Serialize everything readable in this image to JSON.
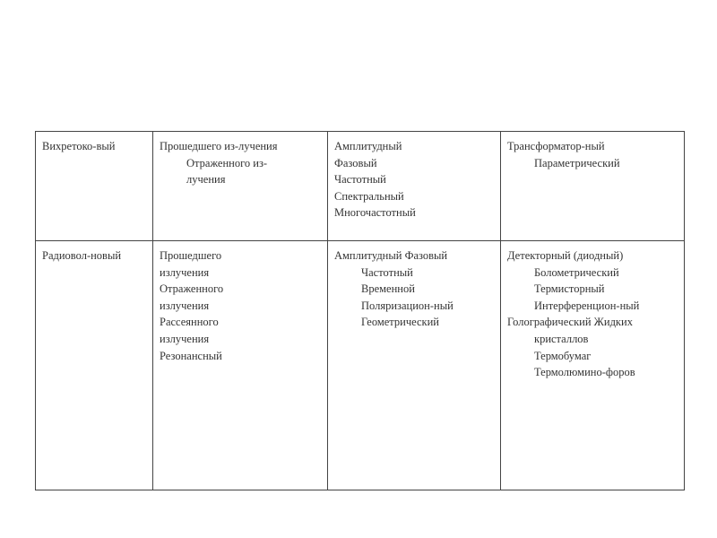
{
  "table": {
    "rows": [
      {
        "cells": [
          {
            "lines": [
              {
                "text": "Вихретоко-вый",
                "indent": false
              }
            ]
          },
          {
            "lines": [
              {
                "text": "Прошедшего из-лучения",
                "indent": false
              },
              {
                "text": "Отраженного из-",
                "indent": true
              },
              {
                "text": "лучения",
                "indent": true
              }
            ]
          },
          {
            "lines": [
              {
                "text": "Амплитудный",
                "indent": false
              },
              {
                "text": "Фазовый",
                "indent": false
              },
              {
                "text": "Частотный",
                "indent": false
              },
              {
                "text": "Спектральный",
                "indent": false
              },
              {
                "text": "Многочастотный",
                "indent": false
              }
            ]
          },
          {
            "lines": [
              {
                "text": "Трансформатор-ный",
                "indent": false
              },
              {
                "text": "Параметрический",
                "indent": true
              }
            ]
          }
        ]
      },
      {
        "cells": [
          {
            "lines": [
              {
                "text": "Радиовол-новый",
                "indent": false
              }
            ]
          },
          {
            "lines": [
              {
                "text": "Прошедшего",
                "indent": false
              },
              {
                "text": "излучения",
                "indent": false
              },
              {
                "text": "Отраженного",
                "indent": false
              },
              {
                "text": "излучения",
                "indent": false
              },
              {
                "text": "Рассеянного",
                "indent": false
              },
              {
                "text": "излучения",
                "indent": false
              },
              {
                "text": "Резонансный",
                "indent": false
              }
            ]
          },
          {
            "lines": [
              {
                "text": "Амплитудный Фазовый",
                "indent": false
              },
              {
                "text": "Частотный",
                "indent": true
              },
              {
                "text": "Временной",
                "indent": true
              },
              {
                "text": "Поляризацион-ный",
                "indent": true
              },
              {
                "text": "Геометрический",
                "indent": true
              }
            ]
          },
          {
            "lines": [
              {
                "text": "Детекторный (диодный)",
                "indent": false
              },
              {
                "text": "Болометрический",
                "indent": true
              },
              {
                "text": "Термисторный",
                "indent": true
              },
              {
                "text": "Интерференцион-ный",
                "indent": true
              },
              {
                "text": "Голографический Жидких",
                "indent": false
              },
              {
                "text": "кристаллов",
                "indent": true
              },
              {
                "text": "Термобумаг",
                "indent": true
              },
              {
                "text": "Термолюмино-форов",
                "indent": true
              }
            ]
          }
        ]
      }
    ]
  }
}
